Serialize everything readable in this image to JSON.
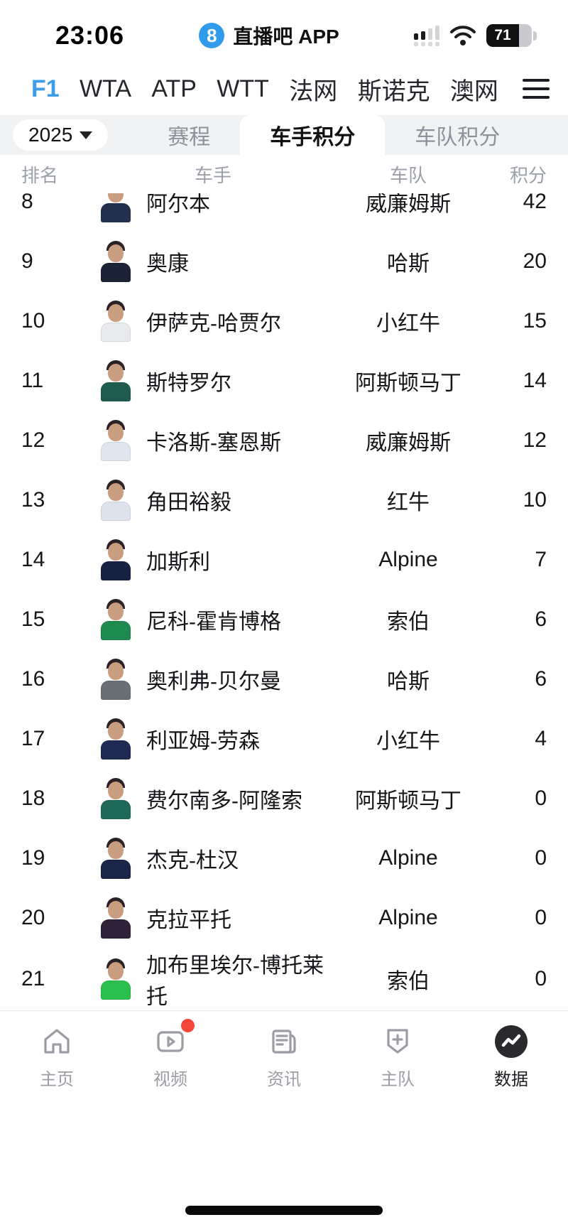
{
  "status_bar": {
    "time": "23:06",
    "app_badge": "8",
    "app_name": "直播吧 APP",
    "battery_level": "71"
  },
  "nav_tabs": {
    "items": [
      "F1",
      "WTA",
      "ATP",
      "WTT",
      "法网",
      "斯诺克",
      "澳网"
    ],
    "active_index": 0,
    "active_color": "#3b9de8"
  },
  "filter_bar": {
    "year": "2025",
    "tabs": [
      "赛程",
      "车手积分",
      "车队积分"
    ],
    "active_tab": "车手积分"
  },
  "standings": {
    "columns": [
      "排名",
      "车手",
      "车队",
      "积分"
    ],
    "rows": [
      {
        "rank": "8",
        "driver": "阿尔本",
        "team": "威廉姆斯",
        "points": "42",
        "avatar_color": "#22304e"
      },
      {
        "rank": "9",
        "driver": "奥康",
        "team": "哈斯",
        "points": "20",
        "avatar_color": "#1c2336"
      },
      {
        "rank": "10",
        "driver": "伊萨克-哈贾尔",
        "team": "小红牛",
        "points": "15",
        "avatar_color": "#e9eaee"
      },
      {
        "rank": "11",
        "driver": "斯特罗尔",
        "team": "阿斯顿马丁",
        "points": "14",
        "avatar_color": "#1e5c4f"
      },
      {
        "rank": "12",
        "driver": "卡洛斯-塞恩斯",
        "team": "威廉姆斯",
        "points": "12",
        "avatar_color": "#dfe6f0"
      },
      {
        "rank": "13",
        "driver": "角田裕毅",
        "team": "红牛",
        "points": "10",
        "avatar_color": "#dde2ec"
      },
      {
        "rank": "14",
        "driver": "加斯利",
        "team": "Alpine",
        "points": "7",
        "avatar_color": "#182243"
      },
      {
        "rank": "15",
        "driver": "尼科-霍肯博格",
        "team": "索伯",
        "points": "6",
        "avatar_color": "#1e8a50"
      },
      {
        "rank": "16",
        "driver": "奥利弗-贝尔曼",
        "team": "哈斯",
        "points": "6",
        "avatar_color": "#6a6f76"
      },
      {
        "rank": "17",
        "driver": "利亚姆-劳森",
        "team": "小红牛",
        "points": "4",
        "avatar_color": "#1d2a52"
      },
      {
        "rank": "18",
        "driver": "费尔南多-阿隆索",
        "team": "阿斯顿马丁",
        "points": "0",
        "avatar_color": "#20695a"
      },
      {
        "rank": "19",
        "driver": "杰克-杜汉",
        "team": "Alpine",
        "points": "0",
        "avatar_color": "#1a2547"
      },
      {
        "rank": "20",
        "driver": "克拉平托",
        "team": "Alpine",
        "points": "0",
        "avatar_color": "#302038"
      },
      {
        "rank": "21",
        "driver": "加布里埃尔-博托莱托",
        "team": "索伯",
        "points": "0",
        "avatar_color": "#2bbf4e"
      }
    ]
  },
  "tab_bar": {
    "items": [
      {
        "label": "主页",
        "icon": "home-icon",
        "active": false,
        "badge": false
      },
      {
        "label": "视频",
        "icon": "video-icon",
        "active": false,
        "badge": true
      },
      {
        "label": "资讯",
        "icon": "news-icon",
        "active": false,
        "badge": false
      },
      {
        "label": "主队",
        "icon": "team-icon",
        "active": false,
        "badge": false
      },
      {
        "label": "数据",
        "icon": "data-icon",
        "active": true,
        "badge": false
      }
    ]
  }
}
